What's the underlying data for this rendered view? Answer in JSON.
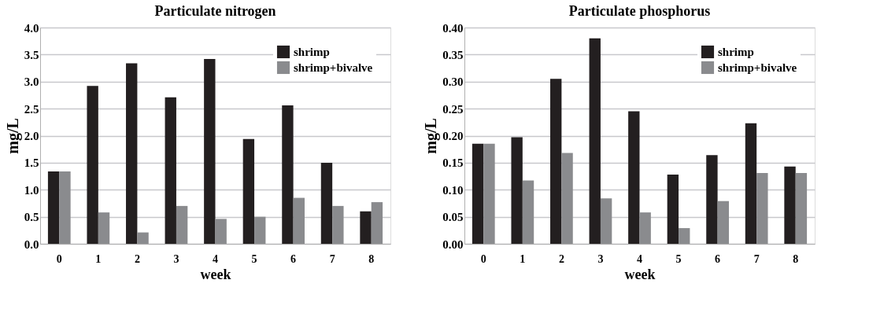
{
  "chart_data": [
    {
      "type": "bar",
      "title": "Particulate nitrogen",
      "xlabel": "week",
      "ylabel": "mg/L",
      "categories": [
        "0",
        "1",
        "2",
        "3",
        "4",
        "5",
        "6",
        "7",
        "8"
      ],
      "ylim": [
        0,
        4.0
      ],
      "yticks": [
        {
          "value": 0,
          "label": "0.0"
        },
        0.5,
        {
          "value": 1,
          "label": "1.0"
        },
        1.5,
        {
          "value": 2,
          "label": "2.0"
        },
        2.5,
        {
          "value": 3,
          "label": "3.0"
        },
        3.5,
        {
          "value": 4,
          "label": "4.0"
        }
      ],
      "grid": "y",
      "legend": "top right",
      "series": [
        {
          "name": "shrimp",
          "color": "#231f20",
          "values": [
            1.34,
            2.92,
            3.34,
            2.71,
            3.42,
            1.94,
            2.56,
            1.5,
            0.6
          ]
        },
        {
          "name": "shrimp+bivalve",
          "color": "#8a8b8e",
          "values": [
            1.34,
            0.58,
            0.21,
            0.7,
            0.46,
            0.5,
            0.85,
            0.7,
            0.77
          ]
        }
      ]
    },
    {
      "type": "bar",
      "title": "Particulate phosphorus",
      "xlabel": "week",
      "ylabel": "mg/L",
      "categories": [
        "0",
        "1",
        "2",
        "3",
        "4",
        "5",
        "6",
        "7",
        "8"
      ],
      "ylim": [
        0,
        0.4
      ],
      "yticks": [
        {
          "value": 0,
          "label": "0.00"
        },
        0.05,
        {
          "value": 0.1,
          "label": "0.10"
        },
        0.15,
        {
          "value": 0.2,
          "label": "0.20"
        },
        0.25,
        {
          "value": 0.3,
          "label": "0.30"
        },
        0.35,
        {
          "value": 0.4,
          "label": "0.40"
        }
      ],
      "grid": "y",
      "legend": "top right",
      "series": [
        {
          "name": "shrimp",
          "color": "#231f20",
          "values": [
            0.185,
            0.197,
            0.305,
            0.38,
            0.245,
            0.128,
            0.164,
            0.223,
            0.143
          ]
        },
        {
          "name": "shrimp+bivalve",
          "color": "#8a8b8e",
          "values": [
            0.185,
            0.117,
            0.168,
            0.084,
            0.058,
            0.029,
            0.079,
            0.131,
            0.131
          ]
        }
      ]
    }
  ]
}
